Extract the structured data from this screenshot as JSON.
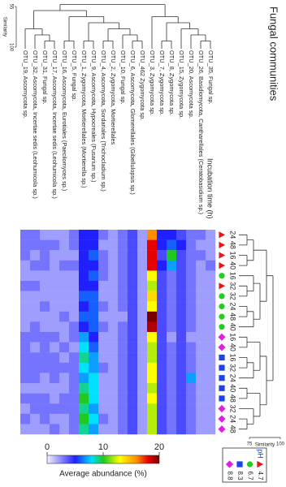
{
  "chart_data": {
    "type": "heatmap",
    "title": "Fungal communities",
    "columns": [
      "OTU_19, Ascomycota sp.",
      "OTU_32, Ascomycota, Incertae sedis (Leohumicola sp.)",
      "OTU_31, Fungal sp.",
      "OTU_17, Ascomycota, Incertae sedis (Leohumicola sp.)",
      "OTU_16, Ascomycota, Eurotiales (Paecilomyces sp.)",
      "OTU_5, Fungal sp.",
      "OTU_1, Zygomycota, Mortierellales (Mortierella sp.)",
      "OTU_9, Ascomycota, Hypocreales (Fusarium sp.)",
      "OTU_4, Ascomycota, Sordariales (Trichocladium sp.)",
      "OTU_2, Zygomycota, Mortierellales",
      "OTU_10, Fungal sp.",
      "OTU_6, Ascomycota, Glomerellales (Gibellulopsis sp.)",
      "OTU_462 Zygomycota sp.",
      "OTU_3, Zygomycota sp.",
      "OTU_7, Zygomycota sp.",
      "OTU_8, Zygomycota sp.",
      "OTU_15, Zygomycota sp.",
      "OTU_20, Ascomycota sp.",
      "OTU_26, Basidiomycota, Cantharellales (Ceratobasidium sp.)",
      "OTU_35, Fungal sp."
    ],
    "row_title": "Incubation time (h)",
    "rows": [
      "24",
      "48",
      "16",
      "40",
      "16",
      "32",
      "32",
      "24",
      "48",
      "40",
      "16",
      "40",
      "16",
      "32",
      "24",
      "40",
      "48",
      "32",
      "24",
      "48"
    ],
    "row_ph": [
      "4.7",
      "4.7",
      "4.7",
      "4.7",
      "6.7",
      "4.7",
      "6.7",
      "6.7",
      "6.7",
      "6.7",
      "8.8",
      "8.8",
      "8.3",
      "8.3",
      "8.3",
      "8.3",
      "8.3",
      "8.8",
      "8.8",
      "8.8"
    ],
    "values": [
      [
        3,
        3,
        2,
        2,
        2,
        3,
        5,
        5,
        3,
        2,
        3,
        4,
        2,
        16,
        5,
        5,
        4,
        3,
        3,
        2
      ],
      [
        3,
        3,
        3,
        3,
        2,
        3,
        5,
        5,
        2,
        2,
        3,
        4,
        2,
        18,
        5,
        6,
        5,
        3,
        2,
        2
      ],
      [
        3,
        2,
        3,
        2,
        2,
        2,
        5,
        6,
        3,
        2,
        3,
        4,
        2,
        18,
        4,
        10,
        4,
        3,
        3,
        2
      ],
      [
        2,
        3,
        3,
        2,
        3,
        3,
        5,
        5,
        3,
        2,
        3,
        4,
        2,
        18,
        5,
        7,
        4,
        3,
        2,
        3
      ],
      [
        2,
        2,
        2,
        2,
        2,
        2,
        5,
        6,
        3,
        2,
        3,
        4,
        2,
        13,
        4,
        3,
        4,
        3,
        2,
        2
      ],
      [
        3,
        3,
        2,
        2,
        2,
        2,
        5,
        5,
        2,
        2,
        3,
        4,
        2,
        12,
        4,
        3,
        4,
        3,
        2,
        2
      ],
      [
        2,
        2,
        2,
        2,
        2,
        2,
        6,
        6,
        2,
        2,
        3,
        4,
        2,
        14,
        4,
        3,
        4,
        3,
        2,
        2
      ],
      [
        2,
        2,
        3,
        2,
        2,
        2,
        5,
        6,
        3,
        2,
        3,
        4,
        2,
        13,
        4,
        3,
        4,
        3,
        2,
        2
      ],
      [
        2,
        2,
        2,
        2,
        3,
        2,
        6,
        6,
        2,
        2,
        2,
        4,
        2,
        20,
        4,
        3,
        4,
        3,
        2,
        2
      ],
      [
        2,
        3,
        2,
        2,
        2,
        3,
        5,
        6,
        3,
        2,
        3,
        4,
        2,
        19,
        4,
        3,
        4,
        3,
        2,
        2
      ],
      [
        3,
        3,
        3,
        3,
        2,
        3,
        7,
        5,
        2,
        2,
        3,
        4,
        2,
        13,
        4,
        2,
        4,
        2,
        2,
        2
      ],
      [
        3,
        2,
        3,
        2,
        3,
        2,
        8,
        6,
        2,
        2,
        3,
        4,
        2,
        12,
        4,
        3,
        4,
        3,
        2,
        2
      ],
      [
        3,
        3,
        3,
        3,
        2,
        3,
        9,
        7,
        2,
        2,
        3,
        4,
        2,
        12,
        4,
        3,
        4,
        3,
        2,
        2
      ],
      [
        3,
        3,
        3,
        3,
        3,
        3,
        8,
        7,
        3,
        2,
        3,
        4,
        2,
        13,
        4,
        3,
        4,
        3,
        2,
        2
      ],
      [
        3,
        3,
        2,
        3,
        2,
        3,
        7,
        8,
        2,
        2,
        3,
        4,
        2,
        13,
        4,
        3,
        4,
        7,
        2,
        2
      ],
      [
        2,
        2,
        2,
        2,
        2,
        3,
        9,
        8,
        2,
        2,
        3,
        4,
        2,
        12,
        4,
        3,
        4,
        3,
        2,
        2
      ],
      [
        3,
        3,
        3,
        2,
        3,
        3,
        10,
        8,
        2,
        2,
        3,
        4,
        2,
        13,
        4,
        3,
        4,
        3,
        2,
        2
      ],
      [
        2,
        3,
        3,
        3,
        3,
        3,
        9,
        7,
        2,
        2,
        3,
        4,
        2,
        12,
        4,
        3,
        4,
        3,
        2,
        2
      ],
      [
        3,
        2,
        3,
        2,
        2,
        3,
        10,
        8,
        3,
        2,
        3,
        4,
        2,
        12,
        4,
        3,
        4,
        3,
        2,
        2
      ],
      [
        2,
        2,
        2,
        3,
        2,
        3,
        9,
        7,
        2,
        2,
        3,
        4,
        2,
        12,
        4,
        3,
        4,
        3,
        2,
        2
      ]
    ],
    "colorbar": {
      "label": "Average abundance (%)",
      "lim": [
        0,
        20
      ],
      "ticks": [
        0,
        10,
        20
      ],
      "scale": [
        [
          0,
          "#f4f2ff"
        ],
        [
          5,
          "#2020ff"
        ],
        [
          8,
          "#00e0ff"
        ],
        [
          10,
          "#20c820"
        ],
        [
          13,
          "#ffff00"
        ],
        [
          16,
          "#ff8c00"
        ],
        [
          18,
          "#e80000"
        ],
        [
          20,
          "#7a0000"
        ]
      ]
    },
    "ph_legend": {
      "title": "pH",
      "items": [
        {
          "label": "4.7",
          "color": "#e8141c",
          "marker": "triangle"
        },
        {
          "label": "6.7",
          "color": "#22cc22",
          "marker": "circle"
        },
        {
          "label": "8.3",
          "color": "#1a44e8",
          "marker": "square"
        },
        {
          "label": "8.8",
          "color": "#e020e0",
          "marker": "diamond"
        }
      ]
    },
    "col_dendrogram": {
      "label": "Similarity",
      "lim": [
        55,
        100
      ],
      "ticks": [
        55,
        100
      ]
    },
    "row_dendrogram": {
      "label": "Similarity",
      "lim": [
        75,
        100
      ],
      "ticks": [
        75,
        100
      ]
    }
  }
}
